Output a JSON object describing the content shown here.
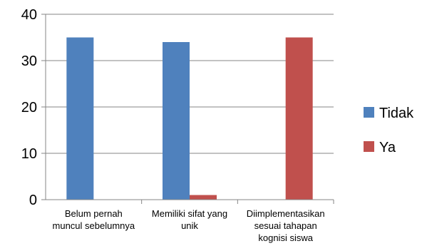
{
  "chart_data": {
    "type": "bar",
    "title": "",
    "xlabel": "",
    "ylabel": "",
    "categories": [
      [
        "Belum pernah",
        "muncul sebelumnya"
      ],
      [
        "Memiliki sifat yang",
        "unik"
      ],
      [
        "Diimplementasikan",
        "sesuai tahapan",
        "kognisi siswa"
      ]
    ],
    "series": [
      {
        "name": "Tidak",
        "color": "#4F81BD",
        "values": [
          35,
          34,
          0
        ]
      },
      {
        "name": "Ya",
        "color": "#C0504D",
        "values": [
          0,
          1,
          35
        ]
      }
    ],
    "ylim": [
      0,
      40
    ],
    "yticks": [
      0,
      10,
      20,
      30,
      40
    ],
    "grid": true,
    "legend_position": "right"
  }
}
